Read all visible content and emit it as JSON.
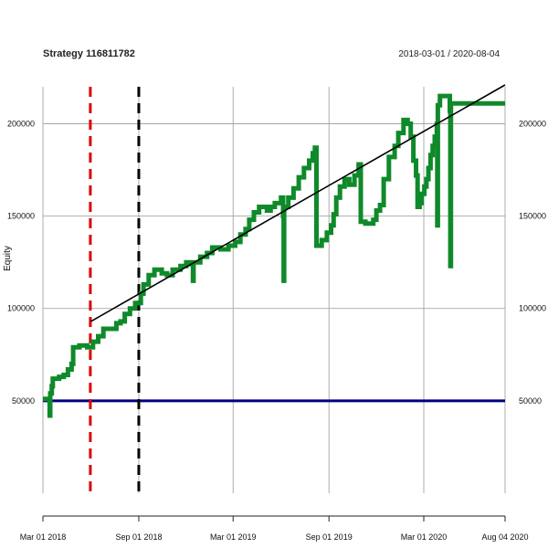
{
  "chart_data": {
    "type": "line",
    "title": "Strategy 116811782",
    "date_range": "2018-03-01 / 2020-08-04",
    "ylabel": "Equity",
    "xlim": [
      "2018-03-01",
      "2020-08-04"
    ],
    "ylim": [
      0,
      220000
    ],
    "grid": true,
    "x_ticks": [
      {
        "date": "2018-03-01",
        "label": "Mar 01 2018"
      },
      {
        "date": "2018-09-01",
        "label": "Sep 01 2018"
      },
      {
        "date": "2019-03-01",
        "label": "Mar 01 2019"
      },
      {
        "date": "2019-09-01",
        "label": "Sep 01 2019"
      },
      {
        "date": "2020-03-01",
        "label": "Mar 01 2020"
      },
      {
        "date": "2020-08-04",
        "label": "Aug 04 2020"
      }
    ],
    "y_ticks": [
      {
        "value": 50000,
        "label": "50000"
      },
      {
        "value": 100000,
        "label": "100000"
      },
      {
        "value": 150000,
        "label": "150000"
      },
      {
        "value": 200000,
        "label": "200000"
      }
    ],
    "series": [
      {
        "color": "#0f8a2a",
        "style": "step",
        "points": [
          [
            "2018-03-01",
            51000
          ],
          [
            "2018-03-14",
            51000
          ],
          [
            "2018-03-14",
            42000
          ],
          [
            "2018-03-15",
            54000
          ],
          [
            "2018-03-18",
            58000
          ],
          [
            "2018-03-20",
            62000
          ],
          [
            "2018-04-01",
            63000
          ],
          [
            "2018-04-10",
            64000
          ],
          [
            "2018-04-18",
            67000
          ],
          [
            "2018-04-25",
            70000
          ],
          [
            "2018-04-28",
            79000
          ],
          [
            "2018-05-10",
            80000
          ],
          [
            "2018-05-25",
            79000
          ],
          [
            "2018-06-05",
            82000
          ],
          [
            "2018-06-15",
            85000
          ],
          [
            "2018-06-25",
            89000
          ],
          [
            "2018-07-10",
            89000
          ],
          [
            "2018-07-20",
            92000
          ],
          [
            "2018-07-28",
            93000
          ],
          [
            "2018-08-05",
            97000
          ],
          [
            "2018-08-15",
            100000
          ],
          [
            "2018-08-25",
            103000
          ],
          [
            "2018-09-05",
            108000
          ],
          [
            "2018-09-10",
            113000
          ],
          [
            "2018-09-20",
            118000
          ],
          [
            "2018-10-01",
            121000
          ],
          [
            "2018-10-15",
            119000
          ],
          [
            "2018-10-25",
            118000
          ],
          [
            "2018-11-05",
            121000
          ],
          [
            "2018-11-20",
            123000
          ],
          [
            "2018-12-01",
            125000
          ],
          [
            "2018-12-10",
            124000
          ],
          [
            "2018-12-14",
            115000
          ],
          [
            "2018-12-15",
            125000
          ],
          [
            "2018-12-28",
            128000
          ],
          [
            "2019-01-10",
            130000
          ],
          [
            "2019-01-20",
            133000
          ],
          [
            "2019-02-05",
            132000
          ],
          [
            "2019-02-20",
            134000
          ],
          [
            "2019-03-05",
            136000
          ],
          [
            "2019-03-15",
            140000
          ],
          [
            "2019-03-25",
            143000
          ],
          [
            "2019-04-01",
            148000
          ],
          [
            "2019-04-10",
            152000
          ],
          [
            "2019-04-20",
            155000
          ],
          [
            "2019-05-05",
            153000
          ],
          [
            "2019-05-12",
            155000
          ],
          [
            "2019-05-20",
            157000
          ],
          [
            "2019-06-01",
            160000
          ],
          [
            "2019-06-05",
            150000
          ],
          [
            "2019-06-06",
            115000
          ],
          [
            "2019-06-07",
            155000
          ],
          [
            "2019-06-15",
            160000
          ],
          [
            "2019-06-25",
            165000
          ],
          [
            "2019-07-05",
            171000
          ],
          [
            "2019-07-15",
            176000
          ],
          [
            "2019-07-25",
            180000
          ],
          [
            "2019-08-01",
            184000
          ],
          [
            "2019-08-05",
            187000
          ],
          [
            "2019-08-08",
            134000
          ],
          [
            "2019-08-18",
            137000
          ],
          [
            "2019-08-28",
            141000
          ],
          [
            "2019-09-05",
            145000
          ],
          [
            "2019-09-10",
            151000
          ],
          [
            "2019-09-15",
            160000
          ],
          [
            "2019-09-22",
            166000
          ],
          [
            "2019-10-01",
            170000
          ],
          [
            "2019-10-10",
            167000
          ],
          [
            "2019-10-20",
            172000
          ],
          [
            "2019-10-28",
            178000
          ],
          [
            "2019-11-01",
            147000
          ],
          [
            "2019-11-10",
            146000
          ],
          [
            "2019-11-25",
            148000
          ],
          [
            "2019-12-01",
            153000
          ],
          [
            "2019-12-08",
            156000
          ],
          [
            "2019-12-15",
            170000
          ],
          [
            "2019-12-25",
            182000
          ],
          [
            "2020-01-05",
            188000
          ],
          [
            "2020-01-12",
            195000
          ],
          [
            "2020-01-22",
            202000
          ],
          [
            "2020-01-30",
            200000
          ],
          [
            "2020-02-05",
            193000
          ],
          [
            "2020-02-10",
            180000
          ],
          [
            "2020-02-15",
            172000
          ],
          [
            "2020-02-18",
            155000
          ],
          [
            "2020-02-22",
            157000
          ],
          [
            "2020-02-26",
            162000
          ],
          [
            "2020-03-02",
            166000
          ],
          [
            "2020-03-06",
            170000
          ],
          [
            "2020-03-10",
            176000
          ],
          [
            "2020-03-14",
            183000
          ],
          [
            "2020-03-18",
            188000
          ],
          [
            "2020-03-22",
            193000
          ],
          [
            "2020-03-26",
            200000
          ],
          [
            "2020-03-27",
            145000
          ],
          [
            "2020-03-28",
            210000
          ],
          [
            "2020-04-01",
            215000
          ],
          [
            "2020-04-15",
            215000
          ],
          [
            "2020-04-20",
            207000
          ],
          [
            "2020-04-21",
            123000
          ],
          [
            "2020-04-22",
            211000
          ],
          [
            "2020-08-04",
            211000
          ]
        ]
      },
      {
        "color": "#000000",
        "style": "line",
        "points": [
          [
            "2018-06-01",
            93000
          ],
          [
            "2020-08-04",
            221000
          ]
        ]
      }
    ],
    "hlines": [
      {
        "value": 50000,
        "color": "#000080"
      }
    ],
    "vlines": [
      {
        "date": "2018-05-31",
        "color": "#dd0000",
        "dash": "dashed"
      },
      {
        "date": "2018-09-01",
        "color": "#000000",
        "dash": "dashed"
      }
    ]
  }
}
